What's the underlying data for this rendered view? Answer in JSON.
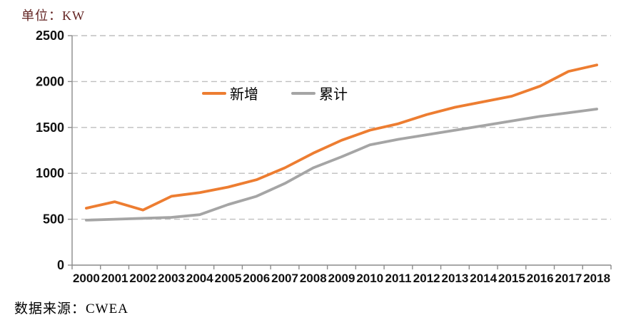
{
  "chart_data": {
    "type": "line",
    "title": "",
    "unit_label": "单位：KW",
    "source": "数据来源：CWEA",
    "categories": [
      "2000",
      "2001",
      "2002",
      "2003",
      "2004",
      "2005",
      "2006",
      "2007",
      "2008",
      "2009",
      "2010",
      "2011",
      "2012",
      "2013",
      "2014",
      "2015",
      "2016",
      "2017",
      "2018"
    ],
    "series": [
      {
        "name": "新增",
        "color": "#ED7D31",
        "values": [
          620,
          690,
          600,
          750,
          790,
          850,
          930,
          1060,
          1220,
          1360,
          1470,
          1540,
          1640,
          1720,
          1780,
          1840,
          1950,
          2110,
          2180
        ]
      },
      {
        "name": "累计",
        "color": "#A5A5A5",
        "values": [
          490,
          500,
          510,
          520,
          550,
          660,
          750,
          890,
          1060,
          1180,
          1310,
          1370,
          1420,
          1470,
          1520,
          1570,
          1620,
          1660,
          1700
        ]
      }
    ],
    "xlabel": "",
    "ylabel": "",
    "ylim": [
      0,
      2500
    ],
    "yticks": [
      0,
      500,
      1000,
      1500,
      2000,
      2500
    ],
    "grid": "horizontal-dashed",
    "legend_position": "inside-top",
    "colors": {
      "grid": "#BFBFBF",
      "axis": "#8C8C8C",
      "tick_text": "#111111",
      "unit_label_text": "#632423",
      "source_text": "#000000"
    }
  }
}
